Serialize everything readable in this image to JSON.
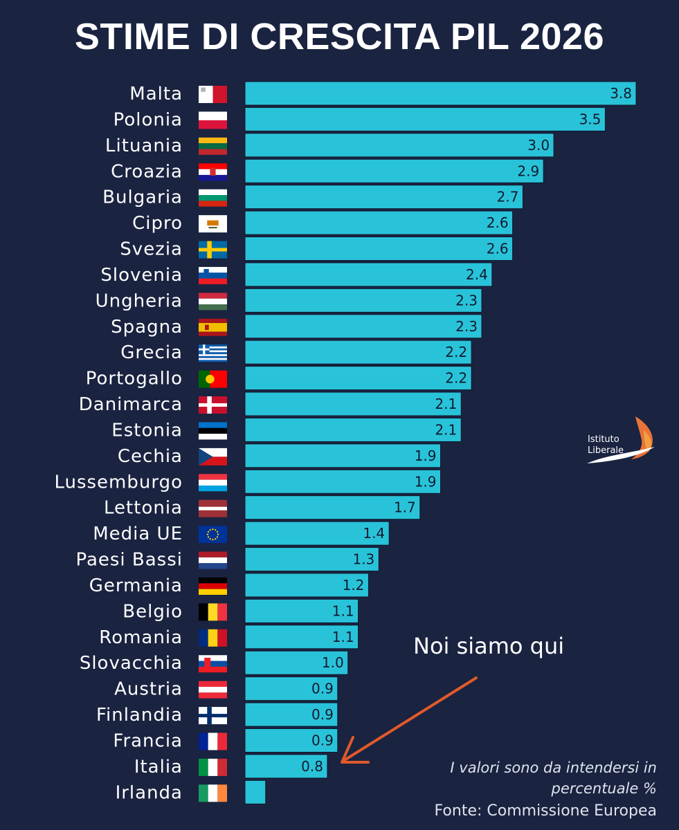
{
  "title": "STIME DI CRESCITA PIL 2026",
  "colors": {
    "background": "#1a2340",
    "bar": "#29c3d9",
    "bar_border": "#10192e",
    "arrow": "#e05a2b",
    "text": "#ffffff"
  },
  "chart_data": {
    "type": "bar",
    "orientation": "horizontal",
    "title": "STIME DI CRESCITA PIL 2026",
    "categories": [
      "Malta",
      "Polonia",
      "Lituania",
      "Croazia",
      "Bulgaria",
      "Cipro",
      "Svezia",
      "Slovenia",
      "Ungheria",
      "Spagna",
      "Grecia",
      "Portogallo",
      "Danimarca",
      "Estonia",
      "Cechia",
      "Lussemburgo",
      "Lettonia",
      "Media UE",
      "Paesi Bassi",
      "Germania",
      "Belgio",
      "Romania",
      "Slovacchia",
      "Austria",
      "Finlandia",
      "Francia",
      "Italia",
      "Irlanda"
    ],
    "values": [
      3.8,
      3.5,
      3.0,
      2.9,
      2.7,
      2.6,
      2.6,
      2.4,
      2.3,
      2.3,
      2.2,
      2.2,
      2.1,
      2.1,
      1.9,
      1.9,
      1.7,
      1.4,
      1.3,
      1.2,
      1.1,
      1.1,
      1.0,
      0.9,
      0.9,
      0.9,
      0.8,
      0.2
    ],
    "value_labels": [
      "3.8",
      "3.5",
      "3.0",
      "2.9",
      "2.7",
      "2.6",
      "2.6",
      "2.4",
      "2.3",
      "2.3",
      "2.2",
      "2.2",
      "2.1",
      "2.1",
      "1.9",
      "1.9",
      "1.7",
      "1.4",
      "1.3",
      "1.2",
      "1.1",
      "1.1",
      "1.0",
      "0.9",
      "0.9",
      "0.9",
      "0.8",
      ""
    ],
    "flags": [
      "malta-flag",
      "poland-flag",
      "lithuania-flag",
      "croatia-flag",
      "bulgaria-flag",
      "cyprus-flag",
      "sweden-flag",
      "slovenia-flag",
      "hungary-flag",
      "spain-flag",
      "greece-flag",
      "portugal-flag",
      "denmark-flag",
      "estonia-flag",
      "czechia-flag",
      "luxembourg-flag",
      "latvia-flag",
      "eu-flag",
      "netherlands-flag",
      "germany-flag",
      "belgium-flag",
      "romania-flag",
      "slovakia-flag",
      "austria-flag",
      "finland-flag",
      "france-flag",
      "italy-flag",
      "ireland-flag"
    ],
    "xlim": [
      0,
      3.8
    ]
  },
  "logo": {
    "line1": "Istituto",
    "line2": "Liberale",
    "icon": "phoenix-icon"
  },
  "annotation": {
    "text": "Noi siamo qui",
    "target": "Italia"
  },
  "note": {
    "line1": "I valori sono da intendersi in",
    "line2": "percentuale %"
  },
  "source": "Fonte: Commissione Europea"
}
